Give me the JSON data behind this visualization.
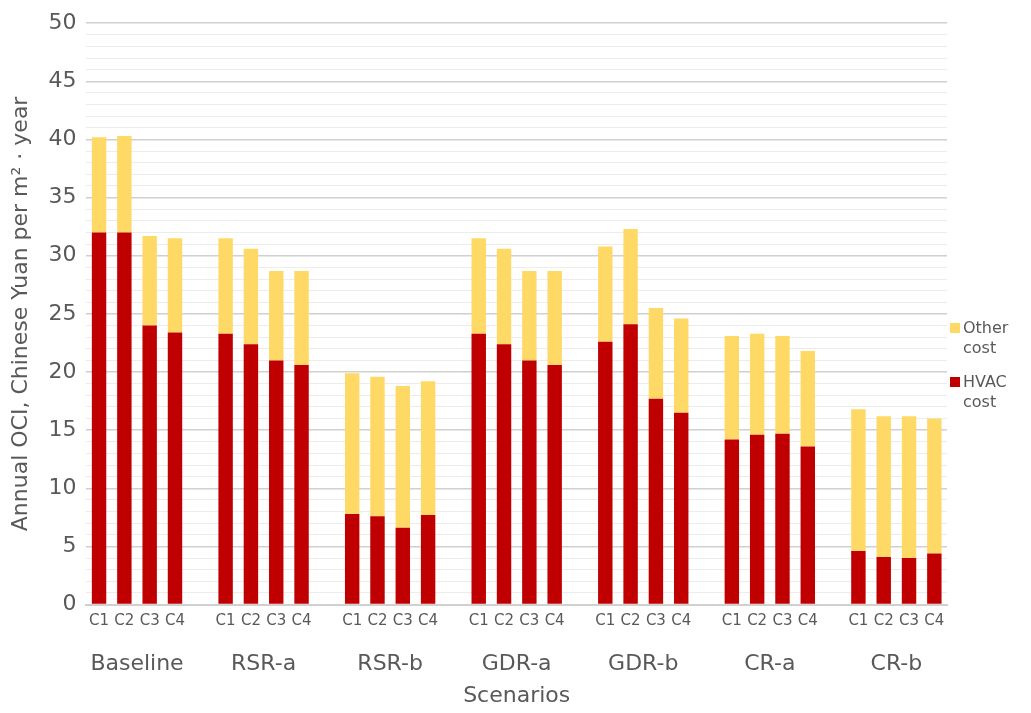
{
  "chart_data": {
    "type": "bar",
    "stacked": true,
    "xlabel": "Scenarios",
    "ylabel": "Annual OCI, Chinese Yuan per m² · year",
    "categories": [
      "C1",
      "C2",
      "C3",
      "C4",
      null,
      "C1",
      "C2",
      "C3",
      "C4",
      null,
      "C1",
      "C2",
      "C3",
      "C4",
      null,
      "C1",
      "C2",
      "C3",
      "C4",
      null,
      "C1",
      "C2",
      "C3",
      "C4",
      null,
      "C1",
      "C2",
      "C3",
      "C4",
      null,
      "C1",
      "C2",
      "C3",
      "C4"
    ],
    "annotations": [
      "Baseline",
      "RSR-a",
      "RSR-b",
      "GDR-a",
      "GDR-b",
      "CR-a",
      "CR-b"
    ],
    "series": [
      {
        "name": "HVAC cost",
        "color": "#c00000",
        "values": [
          32.0,
          32.0,
          24.0,
          23.4,
          null,
          23.3,
          22.4,
          21.0,
          20.6,
          null,
          7.8,
          7.6,
          6.6,
          7.7,
          null,
          23.3,
          22.4,
          21.0,
          20.6,
          null,
          22.6,
          24.1,
          17.7,
          16.5,
          null,
          14.2,
          14.6,
          14.7,
          13.6,
          null,
          4.6,
          4.1,
          4.0,
          4.4
        ]
      },
      {
        "name": "Other cost",
        "color": "#ffd966",
        "values": [
          8.2,
          8.3,
          7.7,
          8.1,
          null,
          8.2,
          8.2,
          7.7,
          8.1,
          null,
          12.1,
          12.0,
          12.2,
          11.5,
          null,
          8.2,
          8.2,
          7.7,
          8.1,
          null,
          8.2,
          8.2,
          7.8,
          8.1,
          null,
          8.9,
          8.7,
          8.4,
          8.2,
          null,
          12.2,
          12.1,
          12.2,
          11.6
        ]
      }
    ],
    "ylim": [
      0,
      50
    ],
    "yticks": [
      0,
      {
        "value": 1,
        "label": null
      },
      {
        "value": 2,
        "label": null
      },
      {
        "value": 3,
        "label": null
      },
      {
        "value": 4,
        "label": null
      },
      5,
      {
        "value": 6,
        "label": null
      },
      {
        "value": 7,
        "label": null
      },
      {
        "value": 8,
        "label": null
      },
      {
        "value": 9,
        "label": null
      },
      10,
      {
        "value": 11,
        "label": null
      },
      {
        "value": 12,
        "label": null
      },
      {
        "value": 13,
        "label": null
      },
      {
        "value": 14,
        "label": null
      },
      15,
      {
        "value": 16,
        "label": null
      },
      {
        "value": 17,
        "label": null
      },
      {
        "value": 18,
        "label": null
      },
      {
        "value": 19,
        "label": null
      },
      20,
      {
        "value": 21,
        "label": null
      },
      {
        "value": 22,
        "label": null
      },
      {
        "value": 23,
        "label": null
      },
      {
        "value": 24,
        "label": null
      },
      25,
      {
        "value": 26,
        "label": null
      },
      {
        "value": 27,
        "label": null
      },
      {
        "value": 28,
        "label": null
      },
      {
        "value": 29,
        "label": null
      },
      30,
      {
        "value": 31,
        "label": null
      },
      {
        "value": 32,
        "label": null
      },
      {
        "value": 33,
        "label": null
      },
      {
        "value": 34,
        "label": null
      },
      35,
      {
        "value": 36,
        "label": null
      },
      {
        "value": 37,
        "label": null
      },
      {
        "value": 38,
        "label": null
      },
      {
        "value": 39,
        "label": null
      },
      40,
      {
        "value": 41,
        "label": null
      },
      {
        "value": 42,
        "label": null
      },
      {
        "value": 43,
        "label": null
      },
      {
        "value": 44,
        "label": null
      },
      45,
      {
        "value": 46,
        "label": null
      },
      {
        "value": 47,
        "label": null
      },
      {
        "value": 48,
        "label": null
      },
      {
        "value": 49,
        "label": null
      },
      50
    ],
    "grid": "y",
    "legend": "right"
  }
}
